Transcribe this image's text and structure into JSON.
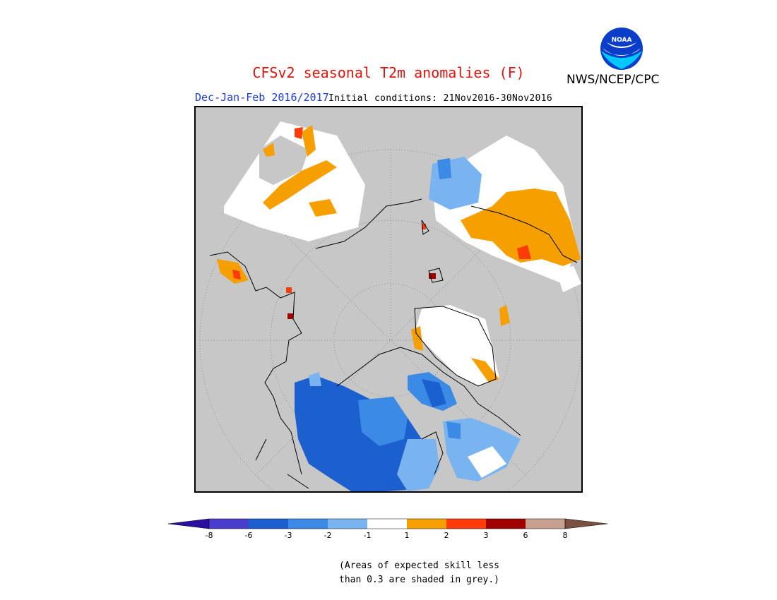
{
  "header": {
    "title": "CFSv2 seasonal T2m anomalies (F)",
    "agency": "NWS/NCEP/CPC",
    "season": "Dec-Jan-Feb 2016/2017",
    "initial_conditions": "Initial conditions: 21Nov2016-30Nov2016",
    "logo_text": "NOAA"
  },
  "colorbar": {
    "colors": [
      "#2a0fa0",
      "#4a3ccc",
      "#1c60d0",
      "#3b8ae6",
      "#7ab4f0",
      "#ffffff",
      "#f5a000",
      "#ff3b0a",
      "#a00000",
      "#c8a090",
      "#7a5040"
    ],
    "labels": [
      "-8",
      "-6",
      "-3",
      "-2",
      "-1",
      "1",
      "2",
      "3",
      "6",
      "8"
    ]
  },
  "note": {
    "line1": "(Areas of expected skill less",
    "line2": "than 0.3 are shaded in grey.)"
  },
  "map": {
    "projection": "north-polar-stereographic",
    "background_color": "#c7c7c7",
    "icon": "polar-temperature-anomaly-map"
  }
}
